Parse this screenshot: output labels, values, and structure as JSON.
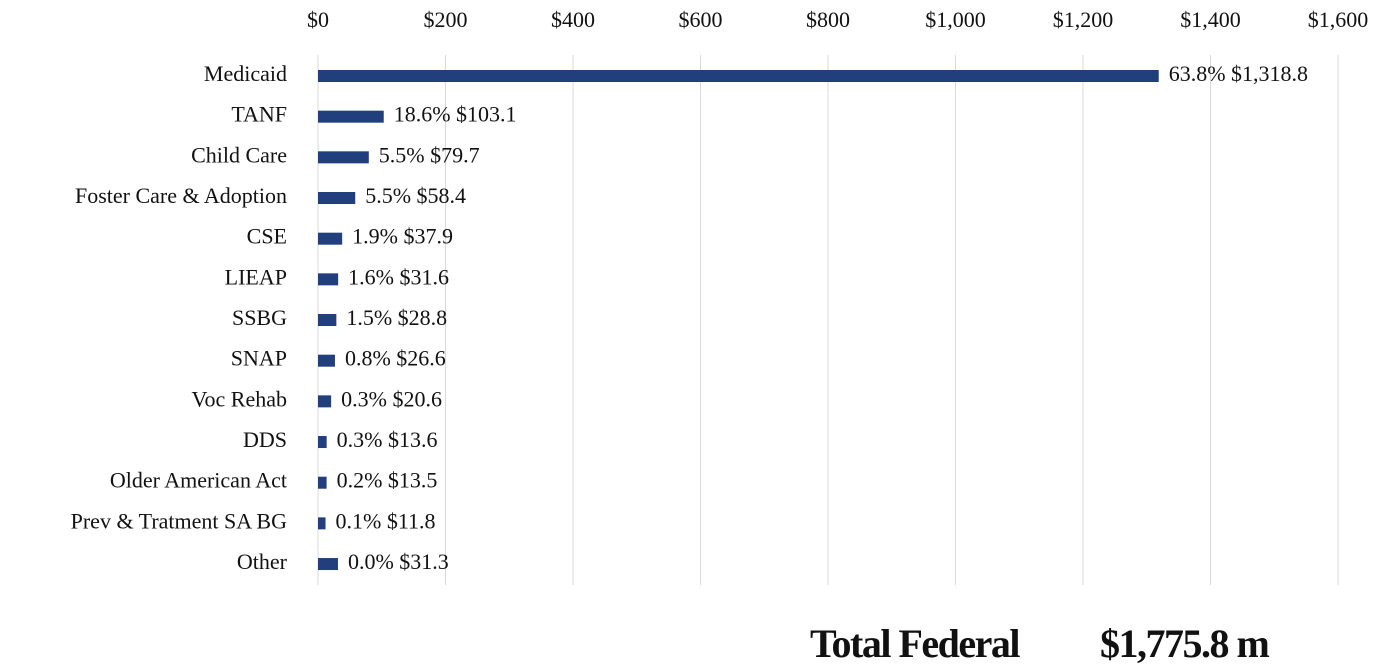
{
  "chart_data": {
    "type": "hbar",
    "categories": [
      "Medicaid",
      "TANF",
      "Child Care",
      "Foster Care & Adoption",
      "CSE",
      "LIEAP",
      "SSBG",
      "SNAP",
      "Voc Rehab",
      "DDS",
      "Older American Act",
      "Prev & Tratment SA BG",
      "Other"
    ],
    "values": [
      1318.8,
      103.1,
      79.7,
      58.4,
      37.9,
      31.6,
      28.8,
      26.6,
      20.6,
      13.6,
      13.5,
      11.8,
      31.3
    ],
    "value_labels": [
      "63.8% $1,318.8",
      "18.6% $103.1",
      "5.5% $79.7",
      "5.5% $58.4",
      "1.9% $37.9",
      "1.6% $31.6",
      "1.5% $28.8",
      "0.8% $26.6",
      "0.3% $20.6",
      "0.3% $13.6",
      "0.2% $13.5",
      "0.1% $11.8",
      "0.0% $31.3"
    ],
    "color": "#203f7c",
    "xlim": [
      0,
      1600
    ],
    "xticks": [
      {
        "value": 0,
        "label": "$0"
      },
      {
        "value": 200,
        "label": "$200"
      },
      {
        "value": 400,
        "label": "$400"
      },
      {
        "value": 600,
        "label": "$600"
      },
      {
        "value": 800,
        "label": "$800"
      },
      {
        "value": 1000,
        "label": "$1,000"
      },
      {
        "value": 1200,
        "label": "$1,200"
      },
      {
        "value": 1400,
        "label": "$1,400"
      },
      {
        "value": 1600,
        "label": "$1,600"
      }
    ],
    "grid": true,
    "total_label": "Total Federal",
    "total_value": "$1,775.8 m"
  }
}
